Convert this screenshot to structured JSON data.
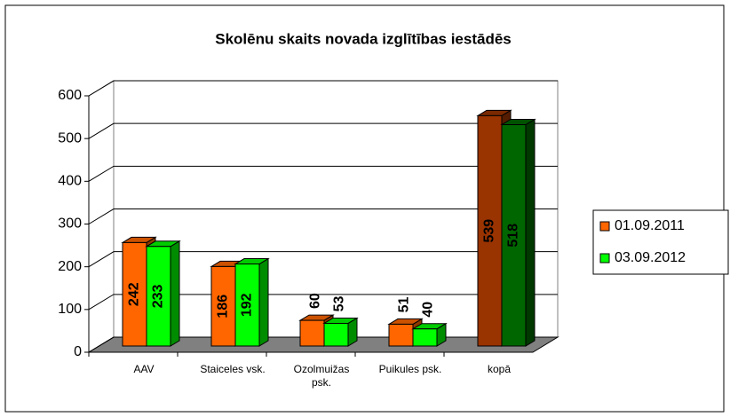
{
  "chart_data": {
    "type": "bar3d",
    "title": "Skolēnu skaits novada izglītības iestādēs",
    "categories": [
      "AAV",
      "Staiceles vsk.",
      "Ozolmuižas psk.",
      "Puikules psk.",
      "kopā"
    ],
    "series": [
      {
        "name": "01.09.2011",
        "color": "#ff6600",
        "colors": [
          "#ff6600",
          "#ff6600",
          "#ff6600",
          "#ff6600",
          "#993300"
        ],
        "values": [
          242,
          186,
          60,
          51,
          539
        ]
      },
      {
        "name": "03.09.2012",
        "color": "#00ff00",
        "colors": [
          "#00ff00",
          "#00ff00",
          "#00ff00",
          "#00ff00",
          "#006600"
        ],
        "values": [
          233,
          192,
          53,
          40,
          518
        ]
      }
    ],
    "ylim": [
      0,
      600
    ],
    "yticks": [
      0,
      100,
      200,
      300,
      400,
      500,
      600
    ],
    "grid": true,
    "legend": "right"
  }
}
